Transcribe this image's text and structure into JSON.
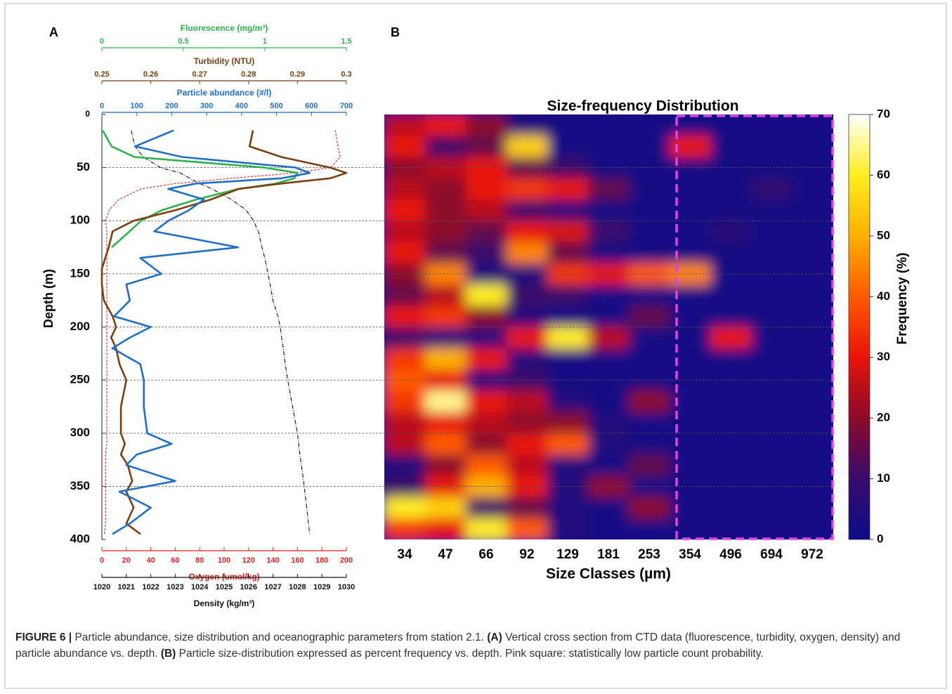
{
  "chart_data": [
    {
      "type": "line",
      "panel_label": "A",
      "ylabel": "Depth (m)",
      "ylim": [
        0,
        400
      ],
      "yticks": [
        0,
        50,
        100,
        150,
        200,
        250,
        300,
        350,
        400
      ],
      "y_inverted": true,
      "grid": true,
      "depth": [
        15,
        30,
        40,
        50,
        55,
        60,
        65,
        70,
        80,
        90,
        100,
        110,
        125,
        135,
        145,
        150,
        160,
        175,
        190,
        200,
        210,
        220,
        235,
        250,
        275,
        300,
        310,
        320,
        330,
        345,
        355,
        370,
        385,
        395
      ],
      "x_axes": [
        {
          "label": "Fluorescence (mg/m³)",
          "color": "#2db34a",
          "position": "top",
          "lim": [
            0,
            1.5
          ],
          "ticks": [
            0,
            0.5,
            1,
            1.5
          ]
        },
        {
          "label": "Turbidity (NTU)",
          "color": "#7b3f10",
          "position": "top",
          "lim": [
            0.25,
            0.3
          ],
          "ticks": [
            0.25,
            0.26,
            0.27,
            0.28,
            0.29,
            0.3
          ]
        },
        {
          "label": "Particle abundance (#/l)",
          "color": "#1f6fc8",
          "position": "top",
          "lim": [
            0,
            700
          ],
          "ticks": [
            0,
            100,
            200,
            300,
            400,
            500,
            600,
            700
          ]
        },
        {
          "label": "Oxygen (umol/kg)",
          "color": "#e3201b",
          "position": "bottom",
          "lim": [
            0,
            200
          ],
          "ticks": [
            0,
            20,
            40,
            60,
            80,
            100,
            120,
            140,
            160,
            180,
            200
          ]
        },
        {
          "label": "Density (kg/m³)",
          "color": "#111111",
          "position": "bottom",
          "lim": [
            1020,
            1030
          ],
          "ticks": [
            1020,
            1021,
            1022,
            1023,
            1024,
            1025,
            1026,
            1027,
            1028,
            1029,
            1030
          ]
        }
      ],
      "series": [
        {
          "axis": 4,
          "color": "#111111",
          "style": "dashdot",
          "values": [
            1021.2,
            1021.35,
            1021.7,
            1022.4,
            1023.2,
            1023.6,
            1024.0,
            1024.5,
            1025.3,
            1025.9,
            1026.2,
            1026.4,
            1026.55,
            1026.66,
            1026.75,
            1026.8,
            1026.88,
            1027.0,
            1027.2,
            1027.3,
            1027.35,
            1027.42,
            1027.5,
            1027.6,
            1027.8,
            1028.0,
            1028.05,
            1028.1,
            1028.16,
            1028.25,
            1028.3,
            1028.38,
            1028.45,
            1028.5
          ]
        },
        {
          "axis": 3,
          "color": "#e3201b",
          "style": "dashed",
          "values": [
            191,
            193,
            195,
            187,
            158,
            106,
            60,
            32,
            14,
            6,
            3,
            4,
            4,
            4,
            4,
            4,
            4,
            4,
            4,
            4,
            4,
            4,
            4,
            4,
            4,
            4,
            4,
            3,
            3,
            3,
            3,
            3,
            3,
            2
          ]
        },
        {
          "axis": 0,
          "color": "#2db34a",
          "style": "solid",
          "values": [
            0.005,
            0.06,
            0.2,
            1.0,
            1.2,
            1.18,
            1.07,
            0.84,
            0.58,
            0.37,
            0.24,
            0.17,
            0.06,
            null,
            null,
            null,
            null,
            null,
            null,
            null,
            null,
            null,
            null,
            null,
            null,
            null,
            null,
            null,
            null,
            null,
            null,
            null,
            null,
            null
          ]
        },
        {
          "axis": 1,
          "color": "#7b3f10",
          "style": "solid",
          "values": [
            0.2809,
            0.2802,
            0.2867,
            0.2967,
            0.3,
            0.2967,
            0.2867,
            0.278,
            0.2723,
            0.2651,
            0.2565,
            0.2522,
            0.2514,
            0.2507,
            0.25,
            0.25,
            0.25,
            0.2504,
            0.2522,
            0.2529,
            0.2519,
            0.2529,
            0.2536,
            0.255,
            0.2539,
            0.2539,
            0.2547,
            0.2539,
            0.2553,
            0.2562,
            0.255,
            0.2565,
            0.255,
            0.2579
          ]
        },
        {
          "axis": 2,
          "color": "#1f6fc8",
          "style": "solid",
          "values": [
            205,
            95,
            230,
            555,
            595,
            515,
            270,
            190,
            292,
            250,
            190,
            150,
            390,
            110,
            150,
            170,
            70,
            80,
            35,
            140,
            80,
            30,
            110,
            120,
            120,
            130,
            200,
            100,
            70,
            210,
            50,
            140,
            80,
            30
          ]
        }
      ]
    },
    {
      "type": "heatmap",
      "panel_label": "B",
      "title": "Size-frequency Distribution",
      "xlabel": "Size Classes (µm)",
      "categories": [
        "34",
        "47",
        "66",
        "92",
        "129",
        "181",
        "253",
        "354",
        "496",
        "694",
        "972"
      ],
      "depth_bins": [
        0,
        20,
        40,
        60,
        80,
        100,
        120,
        140,
        160,
        180,
        200,
        220,
        240,
        260,
        280,
        300,
        320,
        340,
        360,
        380,
        400
      ],
      "zlabel": "Frequency (%)",
      "zlim": [
        0,
        70
      ],
      "zticks": [
        0,
        10,
        20,
        30,
        40,
        50,
        60,
        70
      ],
      "colormap": [
        "#0a0d8a",
        "#3a0b6b",
        "#8c0a2a",
        "#e8140a",
        "#ff5a00",
        "#ffb000",
        "#ffee20",
        "#ffffff"
      ],
      "highlight_color": "#e040e8",
      "values": [
        [
          25,
          30,
          20,
          5,
          2,
          2,
          2,
          2,
          2,
          2,
          2
        ],
        [
          30,
          10,
          15,
          55,
          2,
          2,
          2,
          30,
          2,
          2,
          2
        ],
        [
          20,
          25,
          30,
          15,
          10,
          2,
          2,
          2,
          2,
          2,
          2
        ],
        [
          25,
          20,
          30,
          35,
          30,
          15,
          2,
          2,
          2,
          8,
          2
        ],
        [
          30,
          20,
          25,
          10,
          5,
          2,
          2,
          2,
          2,
          2,
          2
        ],
        [
          25,
          20,
          15,
          30,
          28,
          10,
          2,
          2,
          6,
          2,
          2
        ],
        [
          30,
          15,
          10,
          45,
          15,
          2,
          2,
          2,
          2,
          2,
          2
        ],
        [
          20,
          45,
          5,
          5,
          35,
          30,
          40,
          45,
          2,
          2,
          2
        ],
        [
          15,
          25,
          60,
          10,
          10,
          2,
          2,
          2,
          2,
          2,
          2
        ],
        [
          30,
          35,
          20,
          5,
          2,
          2,
          15,
          2,
          2,
          2,
          2
        ],
        [
          10,
          5,
          5,
          30,
          60,
          25,
          2,
          2,
          30,
          2,
          2
        ],
        [
          35,
          50,
          30,
          5,
          2,
          2,
          2,
          2,
          2,
          2,
          2
        ],
        [
          40,
          30,
          5,
          10,
          2,
          2,
          2,
          2,
          2,
          2,
          2
        ],
        [
          35,
          65,
          30,
          25,
          5,
          2,
          20,
          2,
          2,
          2,
          2
        ],
        [
          25,
          30,
          25,
          20,
          20,
          5,
          2,
          2,
          2,
          2,
          2
        ],
        [
          25,
          40,
          20,
          30,
          40,
          5,
          2,
          2,
          2,
          2,
          2
        ],
        [
          5,
          20,
          40,
          25,
          5,
          2,
          15,
          2,
          2,
          2,
          2
        ],
        [
          10,
          30,
          50,
          30,
          5,
          20,
          2,
          2,
          2,
          2,
          2
        ],
        [
          60,
          55,
          10,
          15,
          5,
          2,
          20,
          2,
          2,
          2,
          2
        ],
        [
          35,
          30,
          60,
          40,
          5,
          2,
          2,
          2,
          2,
          2,
          2
        ]
      ]
    }
  ],
  "caption": [
    "FIGURE 6 |",
    "Particle abundance, size distribution and oceanographic parameters from station 2.1.",
    "(A)",
    "Vertical cross section from CTD data (fluorescence, turbidity, oxygen, density) and particle abundance vs. depth.",
    "(B)",
    "Particle size-distribution expressed as percent frequency vs. depth. Pink square: statistically low particle count probability."
  ]
}
